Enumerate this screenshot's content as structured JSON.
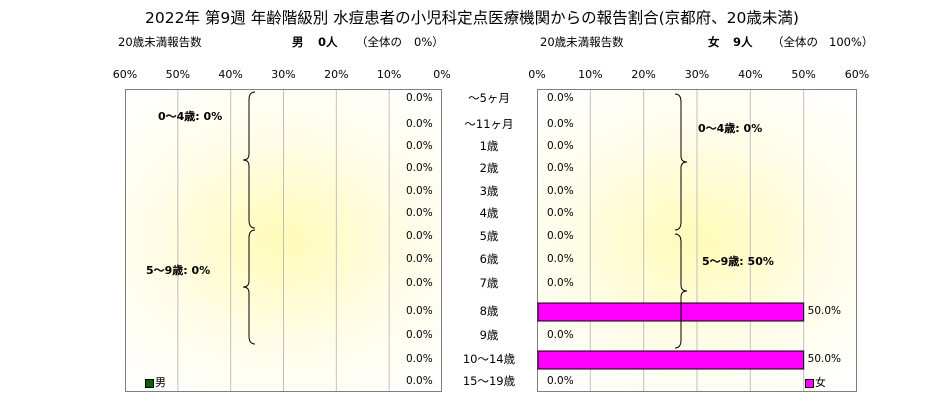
{
  "title": "2022年 第9週 年齢階級別 水痘患者の小児科定点医療機関からの報告割合(京都府、20歳未満)",
  "left_header": {
    "sub": "20歳未満報告数",
    "sex": "男",
    "count": "0人",
    "share_prefix": "（全体の",
    "share_value": "0%）"
  },
  "right_header": {
    "sub": "20歳未満報告数",
    "sex": "女",
    "count": "9人",
    "share_prefix": "（全体の",
    "share_value": "100%）"
  },
  "colors": {
    "male": "#006400",
    "female": "#ff00ff",
    "female_border": "#000000",
    "grid": "#c0c0c0"
  },
  "chart_data": [
    {
      "type": "bar",
      "orientation": "horizontal",
      "direction": "right-to-left",
      "categories": [
        "～5ヶ月",
        "～11ヶ月",
        "1歳",
        "2歳",
        "3歳",
        "4歳",
        "5歳",
        "6歳",
        "7歳",
        "8歳",
        "9歳",
        "10～14歳",
        "15～19歳"
      ],
      "series": [
        {
          "name": "男",
          "values": [
            0,
            0,
            0,
            0,
            0,
            0,
            0,
            0,
            0,
            0,
            0,
            0,
            0
          ]
        }
      ],
      "value_labels": [
        "0.0%",
        "0.0%",
        "0.0%",
        "0.0%",
        "0.0%",
        "0.0%",
        "0.0%",
        "0.0%",
        "0.0%",
        "0.0%",
        "0.0%",
        "0.0%",
        "0.0%"
      ],
      "xlim": [
        0,
        60
      ],
      "x_ticks": [
        "60%",
        "50%",
        "40%",
        "30%",
        "20%",
        "10%",
        "0%"
      ],
      "group_labels": [
        {
          "text": "0～4歳: 0%",
          "span": [
            0,
            5
          ]
        },
        {
          "text": "5～9歳: 0%",
          "span": [
            6,
            10
          ]
        }
      ],
      "legend": "bottom-left",
      "grid": true
    },
    {
      "type": "bar",
      "orientation": "horizontal",
      "direction": "left-to-right",
      "categories": [
        "～5ヶ月",
        "～11ヶ月",
        "1歳",
        "2歳",
        "3歳",
        "4歳",
        "5歳",
        "6歳",
        "7歳",
        "8歳",
        "9歳",
        "10～14歳",
        "15～19歳"
      ],
      "series": [
        {
          "name": "女",
          "values": [
            0,
            0,
            0,
            0,
            0,
            0,
            0,
            0,
            0,
            50,
            0,
            50,
            0
          ]
        }
      ],
      "value_labels": [
        "0.0%",
        "0.0%",
        "0.0%",
        "0.0%",
        "0.0%",
        "0.0%",
        "0.0%",
        "0.0%",
        "0.0%",
        "50.0%",
        "0.0%",
        "50.0%",
        "0.0%"
      ],
      "xlim": [
        0,
        60
      ],
      "x_ticks": [
        "0%",
        "10%",
        "20%",
        "30%",
        "40%",
        "50%",
        "60%"
      ],
      "group_labels": [
        {
          "text": "0～4歳: 0%",
          "span": [
            0,
            5
          ]
        },
        {
          "text": "5～9歳: 50%",
          "span": [
            6,
            10
          ]
        }
      ],
      "legend": "bottom-right",
      "grid": true
    }
  ]
}
